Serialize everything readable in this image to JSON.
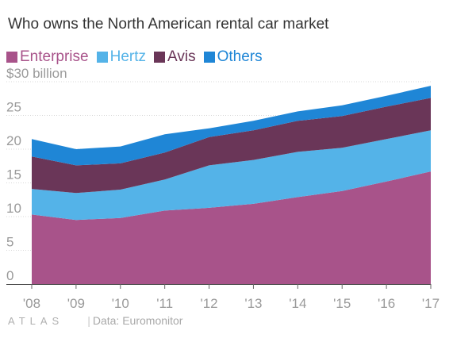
{
  "title": "Who owns the North American rental car market",
  "footer": {
    "logo": "ATLAS",
    "source": "Data: Euromonitor"
  },
  "colors": {
    "Enterprise": "#a8538a",
    "Hertz": "#54b3e8",
    "Avis": "#6a3658",
    "Others": "#1f86d6"
  },
  "chart_data": {
    "type": "area",
    "stacked": true,
    "x": [
      "'08",
      "'09",
      "'10",
      "'11",
      "'12",
      "'13",
      "'14",
      "'15",
      "'16",
      "'17"
    ],
    "series": [
      {
        "name": "Enterprise",
        "color": "#a8538a",
        "values": [
          10.3,
          9.5,
          9.8,
          10.9,
          11.3,
          11.9,
          12.9,
          13.8,
          15.2,
          16.7
        ]
      },
      {
        "name": "Hertz",
        "color": "#54b3e8",
        "values": [
          3.8,
          4.0,
          4.2,
          4.6,
          6.3,
          6.5,
          6.7,
          6.4,
          6.3,
          6.1
        ]
      },
      {
        "name": "Avis",
        "color": "#6a3658",
        "values": [
          4.8,
          4.1,
          3.9,
          4.0,
          4.2,
          4.4,
          4.6,
          4.7,
          4.8,
          4.8
        ]
      },
      {
        "name": "Others",
        "color": "#1f86d6",
        "values": [
          2.6,
          2.4,
          2.5,
          2.7,
          1.3,
          1.4,
          1.4,
          1.6,
          1.6,
          1.8
        ]
      }
    ],
    "y_ticks": [
      "0",
      "5",
      "10",
      "15",
      "20",
      "25",
      "$30 billion"
    ],
    "ylim": [
      0,
      30
    ],
    "grid": true,
    "legend": "top-left"
  }
}
